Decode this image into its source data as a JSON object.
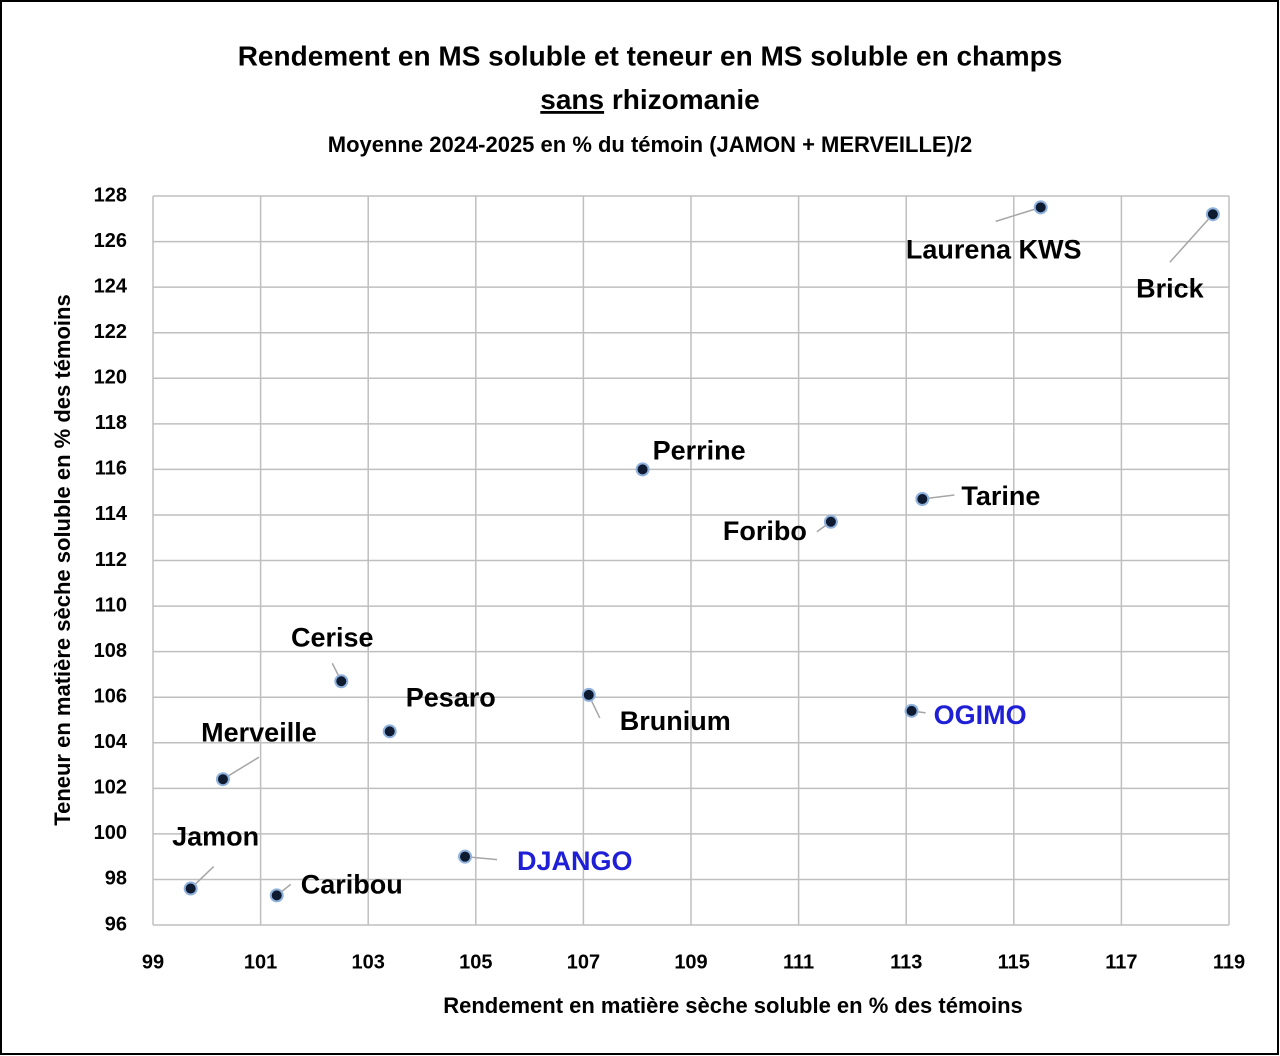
{
  "chart_data": {
    "type": "scatter",
    "title": "Rendement en MS soluble et teneur en MS soluble en champs",
    "title2_underlined": "sans",
    "title2": "rhizomanie",
    "subtitle": "Moyenne 2024-2025 en % du témoin (JAMON + MERVEILLE)/2",
    "x_label": "Rendement en matière sèche soluble en % des témoins",
    "y_label": "Teneur en matière sèche soluble en % des témoins",
    "point_labels": [
      "Laurena KWS",
      "Brick",
      "Perrine",
      "Tarine",
      "Foribo",
      "Cerise",
      "Brunium",
      "Pesaro",
      "OGIMO",
      "Merveille",
      "DJANGO",
      "Jamon",
      "Caribou"
    ],
    "x": [
      115.5,
      118.7,
      108.1,
      113.3,
      111.6,
      102.5,
      107.1,
      103.4,
      113.1,
      100.3,
      104.8,
      99.7,
      101.3
    ],
    "y": [
      127.5,
      127.2,
      116.0,
      114.7,
      113.7,
      106.7,
      106.1,
      104.5,
      105.4,
      102.4,
      99.0,
      97.6,
      97.3
    ],
    "label_colors": [
      "#000000",
      "#000000",
      "#000000",
      "#000000",
      "#000000",
      "#000000",
      "#000000",
      "#000000",
      "#1f1fd6",
      "#000000",
      "#1f1fd6",
      "#000000",
      "#000000"
    ],
    "marker_color": "#0d1a30",
    "marker_edge": "#8fb1dc",
    "xlim": [
      99,
      119
    ],
    "xticks": [
      99,
      101,
      103,
      105,
      107,
      109,
      111,
      113,
      115,
      117,
      119
    ],
    "ylim": [
      96,
      128
    ],
    "yticks": [
      96,
      98,
      100,
      102,
      104,
      106,
      108,
      110,
      112,
      114,
      116,
      118,
      120,
      122,
      124,
      126,
      128
    ],
    "grid": true
  }
}
